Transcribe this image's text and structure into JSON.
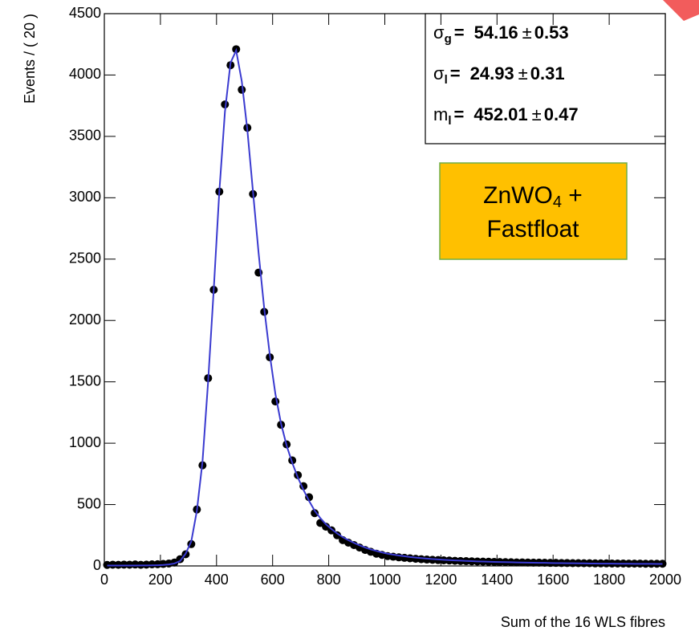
{
  "chart_data": {
    "type": "scatter",
    "x_label": "Sum of the 16 WLS fibres",
    "y_label": "Events / ( 20 )",
    "xlim": [
      0,
      2000
    ],
    "ylim": [
      0,
      4500
    ],
    "xticks": [
      0,
      200,
      400,
      600,
      800,
      1000,
      1200,
      1400,
      1600,
      1800,
      2000
    ],
    "yticks": [
      0,
      500,
      1000,
      1500,
      2000,
      2500,
      3000,
      3500,
      4000,
      4500
    ],
    "x": [
      10,
      30,
      50,
      70,
      90,
      110,
      130,
      150,
      170,
      190,
      210,
      230,
      250,
      270,
      290,
      310,
      330,
      350,
      370,
      390,
      410,
      430,
      450,
      470,
      490,
      510,
      530,
      550,
      570,
      590,
      610,
      630,
      650,
      670,
      690,
      710,
      730,
      750,
      770,
      790,
      810,
      830,
      850,
      870,
      890,
      910,
      930,
      950,
      970,
      990,
      1010,
      1030,
      1050,
      1070,
      1090,
      1110,
      1130,
      1150,
      1170,
      1190,
      1210,
      1230,
      1250,
      1270,
      1290,
      1310,
      1330,
      1350,
      1370,
      1390,
      1410,
      1430,
      1450,
      1470,
      1490,
      1510,
      1530,
      1550,
      1570,
      1590,
      1610,
      1630,
      1650,
      1670,
      1690,
      1710,
      1730,
      1750,
      1770,
      1790,
      1810,
      1830,
      1850,
      1870,
      1890,
      1910,
      1930,
      1950,
      1970,
      1990
    ],
    "series": [
      {
        "style": "points",
        "color": "#000000",
        "values": [
          8,
          10,
          9,
          11,
          10,
          12,
          9,
          11,
          13,
          14,
          16,
          20,
          28,
          55,
          95,
          178,
          460,
          820,
          1530,
          2250,
          3050,
          3760,
          4080,
          4210,
          3880,
          3570,
          3030,
          2390,
          2070,
          1700,
          1340,
          1150,
          990,
          860,
          740,
          650,
          560,
          430,
          350,
          320,
          290,
          250,
          210,
          190,
          170,
          150,
          130,
          115,
          100,
          90,
          80,
          75,
          70,
          66,
          62,
          58,
          55,
          52,
          50,
          48,
          46,
          44,
          42,
          40,
          39,
          38,
          36,
          35,
          34,
          33,
          32,
          31,
          30,
          29,
          29,
          28,
          27,
          27,
          26,
          25,
          25,
          24,
          24,
          23,
          23,
          22,
          22,
          21,
          21,
          21,
          20,
          20,
          20,
          19,
          19,
          19,
          18,
          18,
          18,
          18
        ]
      },
      {
        "style": "line",
        "color": "#3a3ad0",
        "values": [
          3,
          3,
          3,
          3,
          3,
          3,
          4,
          4,
          5,
          6,
          8,
          12,
          20,
          40,
          100,
          200,
          450,
          850,
          1500,
          2250,
          3050,
          3700,
          4100,
          4200,
          3950,
          3550,
          3050,
          2550,
          2100,
          1720,
          1400,
          1160,
          980,
          840,
          720,
          620,
          530,
          450,
          390,
          340,
          300,
          265,
          235,
          210,
          188,
          168,
          150,
          135,
          122,
          110,
          100,
          92,
          85,
          79,
          73,
          68,
          64,
          60,
          56,
          53,
          50,
          47,
          45,
          43,
          41,
          39,
          37,
          36,
          34,
          33,
          32,
          31,
          30,
          29,
          28,
          27,
          26,
          25,
          25,
          24,
          23,
          23,
          22,
          22,
          21,
          21,
          20,
          20,
          19,
          19,
          19,
          18,
          18,
          18,
          17,
          17,
          17,
          17,
          16,
          16
        ]
      }
    ],
    "stats": [
      {
        "symbol": "σ",
        "sub": "g",
        "eq": "=",
        "value": 54.16,
        "pm": "±",
        "error": 0.53
      },
      {
        "symbol": "σ",
        "sub": "l",
        "eq": "=",
        "value": 24.93,
        "pm": "±",
        "error": 0.31
      },
      {
        "symbol": "m",
        "sub": "l",
        "eq": "=",
        "value": 452.01,
        "pm": "±",
        "error": 0.47
      }
    ],
    "annotation": {
      "text": "ZnWO",
      "sub": "4",
      "suffix": " +",
      "line2": "Fastfloat"
    }
  }
}
